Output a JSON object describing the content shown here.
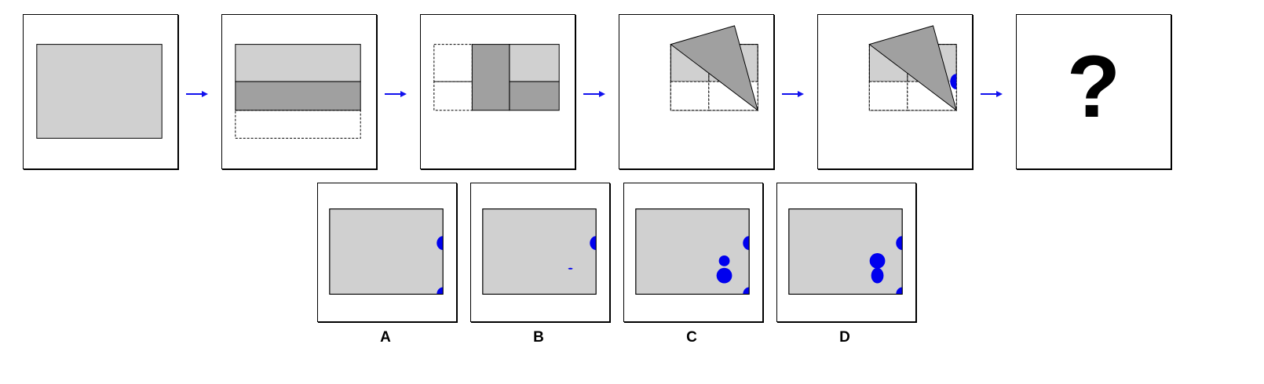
{
  "question_mark": "?",
  "colors": {
    "paper": "#d0d0d0",
    "folded": "#a0a0a0",
    "hole": "#0000ee",
    "arrow": "#1111ee"
  },
  "steps": [
    {
      "name": "unfolded-sheet"
    },
    {
      "name": "fold-1-horizontal"
    },
    {
      "name": "fold-2-vertical"
    },
    {
      "name": "fold-3-diagonal"
    },
    {
      "name": "punch-hole"
    },
    {
      "name": "result-unknown"
    }
  ],
  "options": [
    {
      "label": "A"
    },
    {
      "label": "B"
    },
    {
      "label": "C"
    },
    {
      "label": "D"
    }
  ]
}
